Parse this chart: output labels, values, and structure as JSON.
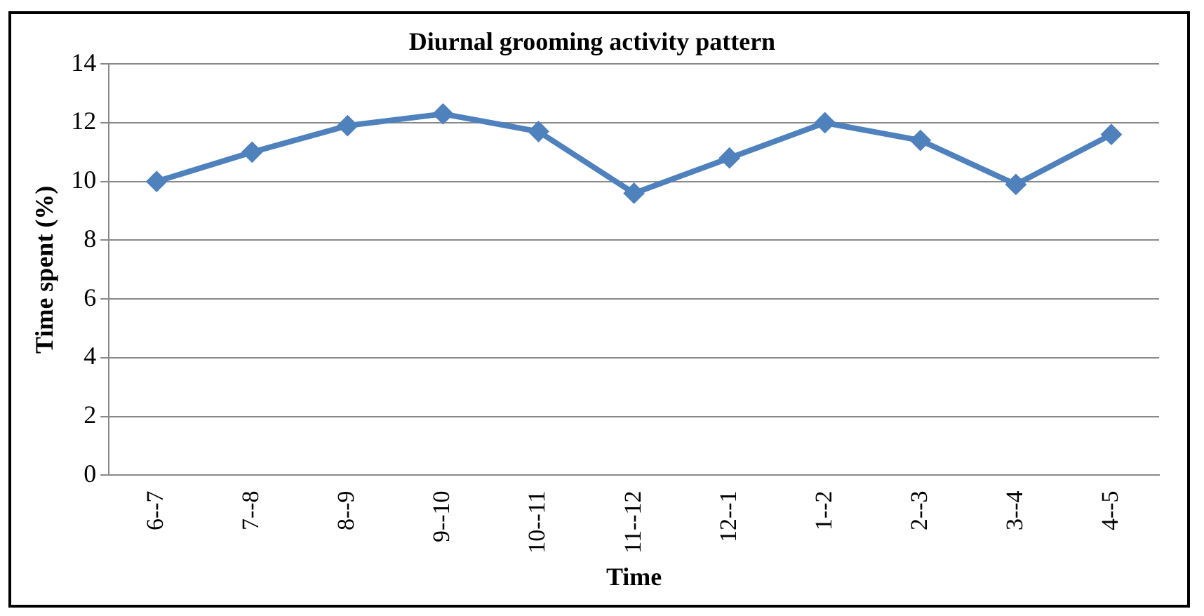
{
  "chart_data": {
    "type": "line",
    "title": "Diurnal grooming activity pattern",
    "xlabel": "Time",
    "ylabel": "Time spent (%)",
    "categories": [
      "6--7",
      "7--8",
      "8--9",
      "9--10",
      "10--11",
      "11--12",
      "12--1",
      "1--2",
      "2--3",
      "3--4",
      "4--5"
    ],
    "series": [
      {
        "color": "#4f81bd",
        "values": [
          10.0,
          11.0,
          11.9,
          12.3,
          11.7,
          9.6,
          10.8,
          12.0,
          11.4,
          9.9,
          11.6
        ]
      }
    ],
    "ylim": [
      0,
      14
    ],
    "yticks": [
      0,
      2,
      4,
      6,
      8,
      10,
      12,
      14
    ],
    "grid": "y",
    "legend": false,
    "marker": "diamond",
    "line_style": "solid"
  }
}
